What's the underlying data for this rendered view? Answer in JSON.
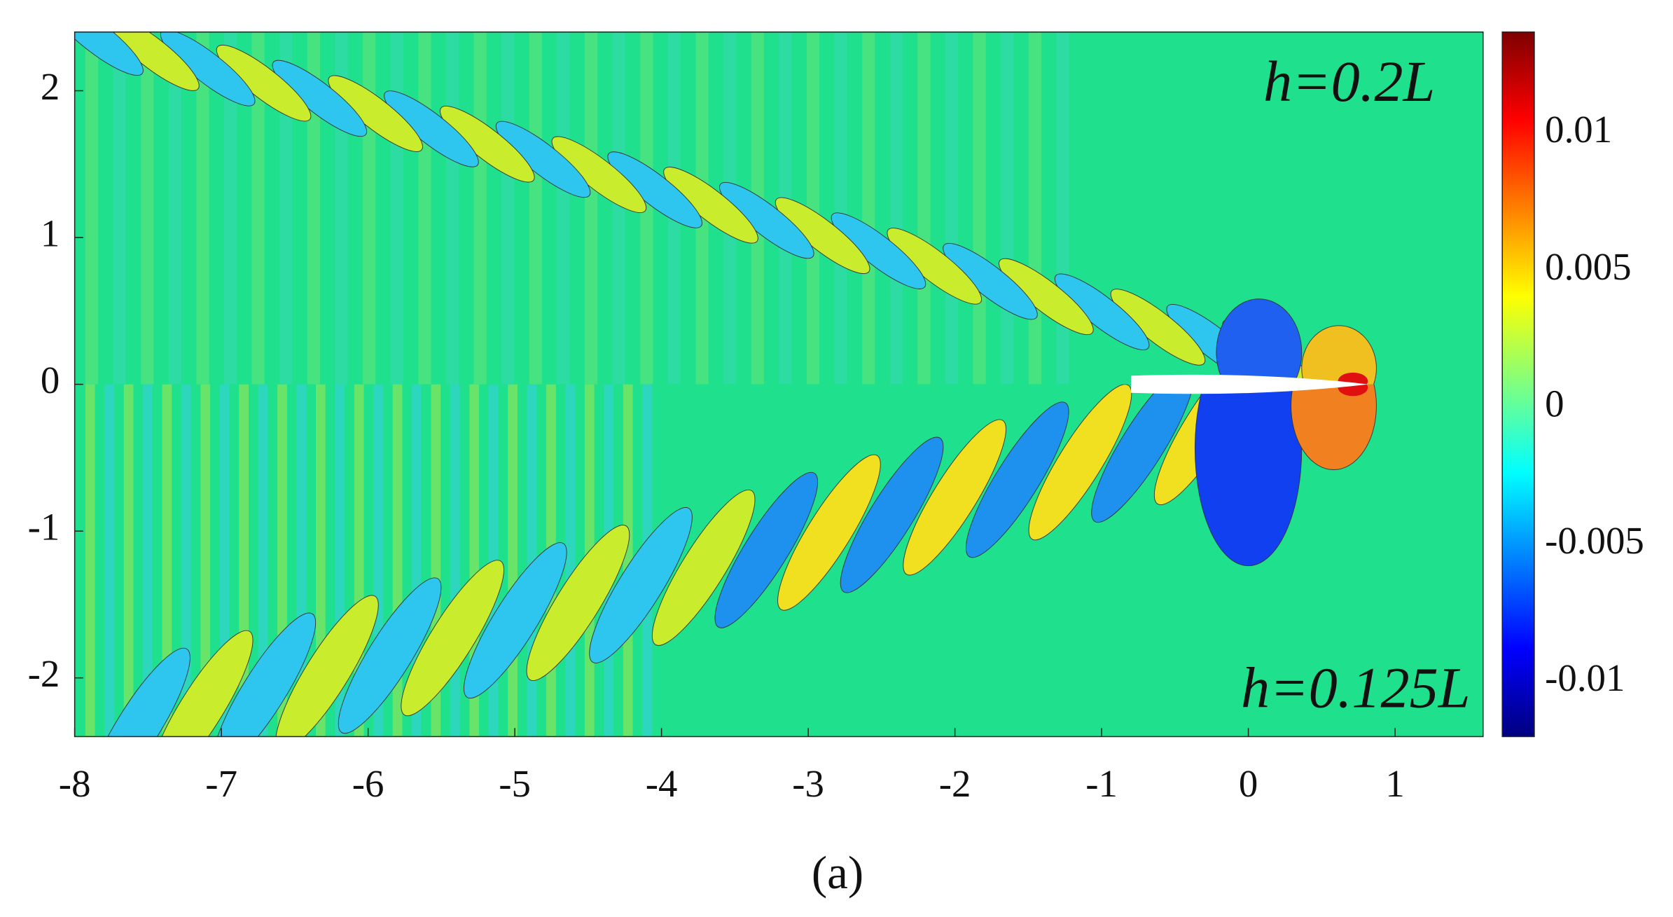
{
  "chart_data": {
    "type": "contour",
    "xlim": [
      -8,
      1.6
    ],
    "ylim": [
      -2.4,
      2.4
    ],
    "xticks": [
      -8,
      -7,
      -6,
      -5,
      -4,
      -3,
      -2,
      -1,
      0,
      1
    ],
    "yticks": [
      -2,
      -1,
      0,
      1,
      2
    ],
    "colorbar": {
      "clim": [
        -0.012,
        0.0137
      ],
      "ticks": [
        -0.01,
        -0.005,
        0,
        0.005,
        0.01
      ],
      "colormap": "jet"
    },
    "annotations": [
      "h=0.2L",
      "h=0.125L"
    ],
    "caption": "(a)"
  }
}
